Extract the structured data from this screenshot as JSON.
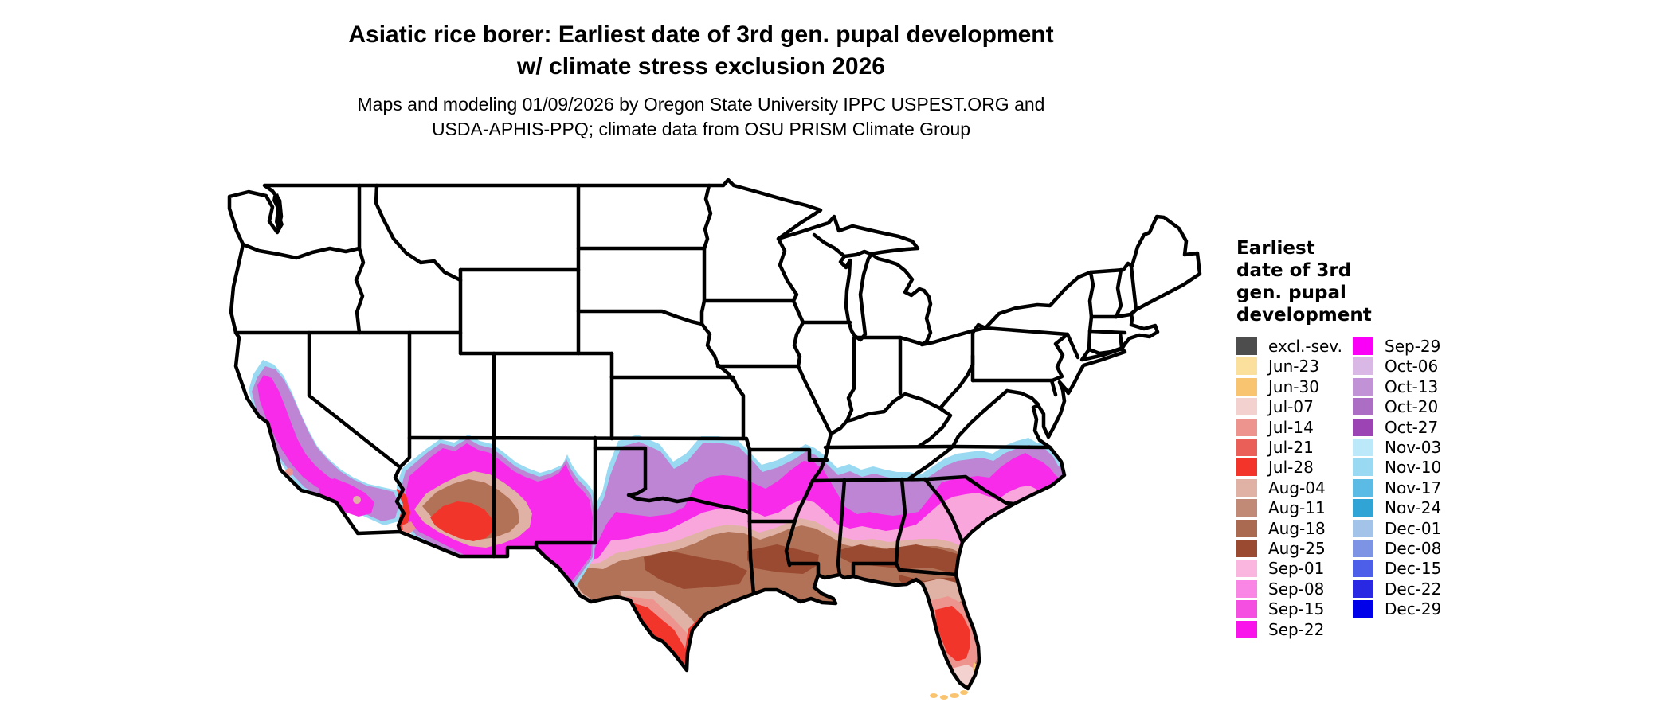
{
  "header": {
    "title_line1": "Asiatic rice borer: Earliest date of 3rd gen. pupal development",
    "title_line2": "w/ climate stress exclusion 2026",
    "subtitle_line1": "Maps and modeling 01/09/2026 by Oregon State University IPPC USPEST.ORG and",
    "subtitle_line2": "USDA-APHIS-PPQ; climate data from OSU PRISM Climate Group"
  },
  "legend": {
    "title_lines": [
      "Earliest",
      "date of 3rd",
      "gen. pupal",
      "development"
    ],
    "columns": [
      [
        {
          "label": "excl.-sev.",
          "color": "#4D4D4D"
        },
        {
          "label": "Jun-23",
          "color": "#FBDF9C"
        },
        {
          "label": "Jun-30",
          "color": "#F9C46F"
        },
        {
          "label": "Jul-07",
          "color": "#F3D1CE"
        },
        {
          "label": "Jul-14",
          "color": "#EE948F"
        },
        {
          "label": "Jul-21",
          "color": "#EA6059"
        },
        {
          "label": "Jul-28",
          "color": "#F2342B"
        },
        {
          "label": "Aug-04",
          "color": "#E0B2A6"
        },
        {
          "label": "Aug-11",
          "color": "#C08A77"
        },
        {
          "label": "Aug-18",
          "color": "#AA6A52"
        },
        {
          "label": "Aug-25",
          "color": "#9A4A30"
        },
        {
          "label": "Sep-01",
          "color": "#FBB6DF"
        },
        {
          "label": "Sep-08",
          "color": "#F986E5"
        },
        {
          "label": "Sep-15",
          "color": "#F54FE2"
        },
        {
          "label": "Sep-22",
          "color": "#FA14EC"
        }
      ],
      [
        {
          "label": "Sep-29",
          "color": "#FB00F7"
        },
        {
          "label": "Oct-06",
          "color": "#D9B8E5"
        },
        {
          "label": "Oct-13",
          "color": "#C292D6"
        },
        {
          "label": "Oct-20",
          "color": "#AC6EC5"
        },
        {
          "label": "Oct-27",
          "color": "#9C44B3"
        },
        {
          "label": "Nov-03",
          "color": "#BCE9FA"
        },
        {
          "label": "Nov-10",
          "color": "#99DAF2"
        },
        {
          "label": "Nov-17",
          "color": "#5BBBE4"
        },
        {
          "label": "Nov-24",
          "color": "#2FA4D5"
        },
        {
          "label": "Dec-01",
          "color": "#A4C3E8"
        },
        {
          "label": "Dec-08",
          "color": "#7D94E5"
        },
        {
          "label": "Dec-15",
          "color": "#4D5EE8"
        },
        {
          "label": "Dec-22",
          "color": "#2929E3"
        },
        {
          "label": "Dec-29",
          "color": "#0000E9"
        }
      ]
    ]
  },
  "chart_data": {
    "type": "heatmap",
    "subtype": "choropleth-map",
    "title": "Asiatic rice borer: Earliest date of 3rd gen. pupal development w/ climate stress exclusion 2026",
    "subtitle": "Maps and modeling 01/09/2026 by Oregon State University IPPC USPEST.ORG and USDA-APHIS-PPQ; climate data from OSU PRISM Climate Group",
    "legend_title": "Earliest date of 3rd gen. pupal development",
    "region_shown": "contiguous United States with state borders",
    "categories": [
      "excl.-sev.",
      "Jun-23",
      "Jun-30",
      "Jul-07",
      "Jul-14",
      "Jul-21",
      "Jul-28",
      "Aug-04",
      "Aug-11",
      "Aug-18",
      "Aug-25",
      "Sep-01",
      "Sep-08",
      "Sep-15",
      "Sep-22",
      "Sep-29",
      "Oct-06",
      "Oct-13",
      "Oct-20",
      "Oct-27",
      "Nov-03",
      "Nov-10",
      "Nov-17",
      "Nov-24",
      "Dec-01",
      "Dec-08",
      "Dec-15",
      "Dec-22",
      "Dec-29"
    ],
    "colors": [
      "#4D4D4D",
      "#FBDF9C",
      "#F9C46F",
      "#F3D1CE",
      "#EE948F",
      "#EA6059",
      "#F2342B",
      "#E0B2A6",
      "#C08A77",
      "#AA6A52",
      "#9A4A30",
      "#FBB6DF",
      "#F986E5",
      "#F54FE2",
      "#FA14EC",
      "#FB00F7",
      "#D9B8E5",
      "#C292D6",
      "#AC6EC5",
      "#9C44B3",
      "#BCE9FA",
      "#99DAF2",
      "#5BBBE4",
      "#2FA4D5",
      "#A4C3E8",
      "#7D94E5",
      "#4D5EE8",
      "#2929E3",
      "#0000E9"
    ],
    "legend_position": "right, two columns",
    "map_summary": [
      {
        "region": "Pacific Northwest, Rockies, northern Plains, Midwest, Northeast",
        "value": "uncolored (no 3rd generation pupal development)"
      },
      {
        "region": "California Central Valley and southern California",
        "value": "Sep-08 to Oct-27 with Nov blue fringes"
      },
      {
        "region": "southern Arizona interior (Phoenix/Yuma)",
        "value": "Jul-21 to Aug-25 core ringed by Sep-Oct"
      },
      {
        "region": "northern Texas, Oklahoma, NW Arkansas, SW Missouri",
        "value": "Oct-06 to Oct-27 band with Nov cyan fringe"
      },
      {
        "region": "central Texas, Arkansas, mid-South, Carolinas coastal plain",
        "value": "Sep-01 to Sep-29"
      },
      {
        "region": "south-central Texas, Louisiana, southern MS/AL/GA, north Florida",
        "value": "Aug-04 to Aug-25"
      },
      {
        "region": "south Texas Rio Grande Valley",
        "value": "Jul-14 to Jul-28"
      },
      {
        "region": "central Florida",
        "value": "Jul-14 to Jul-28"
      },
      {
        "region": "south Florida tip and Keys",
        "value": "Jun-30 to Jul-07"
      }
    ]
  }
}
